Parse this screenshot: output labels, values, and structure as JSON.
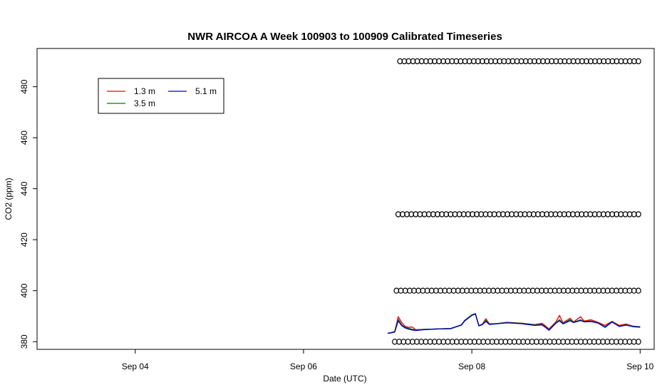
{
  "chart_data": {
    "type": "line",
    "title": "NWR AIRCOA A  Week 100903 to 100909  Calibrated Timeseries",
    "xlabel": "Date (UTC)",
    "ylabel": "CO2 (ppm)",
    "xlim": [
      "2010-09-02T20:00",
      "2010-09-10T04:00"
    ],
    "ylim": [
      377,
      495
    ],
    "x_ticks": [
      {
        "label": "Sep 04",
        "date": "2010-09-04T00:00"
      },
      {
        "label": "Sep 06",
        "date": "2010-09-06T00:00"
      },
      {
        "label": "Sep 08",
        "date": "2010-09-08T00:00"
      },
      {
        "label": "Sep 10",
        "date": "2010-09-10T00:00"
      }
    ],
    "y_ticks": [
      380,
      400,
      420,
      440,
      460,
      480
    ],
    "grid": false,
    "legend": {
      "placement": "top-left",
      "entries": [
        {
          "label": "1.3 m",
          "color": "#ff0000"
        },
        {
          "label": "5.1 m",
          "color": "#0000cc"
        },
        {
          "label": "3.5 m",
          "color": "#008000"
        }
      ]
    },
    "series": [
      {
        "name": "1.3 m",
        "color": "#ff0000",
        "points": [
          [
            "2010-09-07T00:00",
            383.3
          ],
          [
            "2010-09-07T01:00",
            383.6
          ],
          [
            "2010-09-07T02:00",
            384.0
          ],
          [
            "2010-09-07T03:00",
            389.8
          ],
          [
            "2010-09-07T04:00",
            387.5
          ],
          [
            "2010-09-07T05:00",
            386.0
          ],
          [
            "2010-09-07T06:00",
            385.6
          ],
          [
            "2010-09-07T07:00",
            385.8
          ],
          [
            "2010-09-07T08:00",
            384.7
          ],
          [
            "2010-09-07T10:00",
            384.8
          ],
          [
            "2010-09-07T14:00",
            385.0
          ],
          [
            "2010-09-07T18:00",
            385.2
          ],
          [
            "2010-09-07T21:00",
            386.6
          ],
          [
            "2010-09-07T22:00",
            388.4
          ],
          [
            "2010-09-08T00:00",
            390.5
          ],
          [
            "2010-09-08T01:00",
            391.0
          ],
          [
            "2010-09-08T02:00",
            386.3
          ],
          [
            "2010-09-08T03:00",
            386.9
          ],
          [
            "2010-09-08T04:00",
            389.0
          ],
          [
            "2010-09-08T05:00",
            387.0
          ],
          [
            "2010-09-08T07:00",
            387.1
          ],
          [
            "2010-09-08T10:00",
            387.6
          ],
          [
            "2010-09-08T14:00",
            387.3
          ],
          [
            "2010-09-08T18:00",
            386.7
          ],
          [
            "2010-09-08T20:00",
            387.2
          ],
          [
            "2010-09-08T21:00",
            386.2
          ],
          [
            "2010-09-08T22:00",
            385.0
          ],
          [
            "2010-09-09T00:00",
            387.8
          ],
          [
            "2010-09-09T01:00",
            390.3
          ],
          [
            "2010-09-09T02:00",
            387.4
          ],
          [
            "2010-09-09T04:00",
            389.2
          ],
          [
            "2010-09-09T05:00",
            387.7
          ],
          [
            "2010-09-09T07:00",
            389.8
          ],
          [
            "2010-09-09T08:00",
            388.1
          ],
          [
            "2010-09-09T10:00",
            388.6
          ],
          [
            "2010-09-09T12:00",
            387.6
          ],
          [
            "2010-09-09T14:00",
            386.4
          ],
          [
            "2010-09-09T15:00",
            387.2
          ],
          [
            "2010-09-09T16:00",
            388.0
          ],
          [
            "2010-09-09T18:00",
            386.4
          ],
          [
            "2010-09-09T20:00",
            386.9
          ],
          [
            "2010-09-09T22:00",
            386.1
          ],
          [
            "2010-09-10T00:00",
            385.9
          ]
        ]
      },
      {
        "name": "3.5 m",
        "color": "#008000",
        "points": [
          [
            "2010-09-07T00:00",
            383.3
          ],
          [
            "2010-09-07T01:00",
            383.6
          ],
          [
            "2010-09-07T02:00",
            384.0
          ],
          [
            "2010-09-07T03:00",
            388.8
          ],
          [
            "2010-09-07T04:00",
            386.6
          ],
          [
            "2010-09-07T05:00",
            385.7
          ],
          [
            "2010-09-07T06:00",
            385.2
          ],
          [
            "2010-09-07T07:00",
            384.9
          ],
          [
            "2010-09-07T08:00",
            384.5
          ],
          [
            "2010-09-07T10:00",
            384.8
          ],
          [
            "2010-09-07T14:00",
            385.0
          ],
          [
            "2010-09-07T18:00",
            385.2
          ],
          [
            "2010-09-07T21:00",
            386.6
          ],
          [
            "2010-09-07T22:00",
            388.4
          ],
          [
            "2010-09-08T00:00",
            390.5
          ],
          [
            "2010-09-08T01:00",
            391.0
          ],
          [
            "2010-09-08T02:00",
            386.3
          ],
          [
            "2010-09-08T03:00",
            386.8
          ],
          [
            "2010-09-08T04:00",
            388.4
          ],
          [
            "2010-09-08T05:00",
            386.9
          ],
          [
            "2010-09-08T07:00",
            387.1
          ],
          [
            "2010-09-08T10:00",
            387.5
          ],
          [
            "2010-09-08T14:00",
            387.2
          ],
          [
            "2010-09-08T18:00",
            386.5
          ],
          [
            "2010-09-08T20:00",
            386.8
          ],
          [
            "2010-09-08T21:00",
            385.8
          ],
          [
            "2010-09-08T22:00",
            384.6
          ],
          [
            "2010-09-09T00:00",
            387.5
          ],
          [
            "2010-09-09T01:00",
            388.6
          ],
          [
            "2010-09-09T02:00",
            387.2
          ],
          [
            "2010-09-09T04:00",
            388.6
          ],
          [
            "2010-09-09T05:00",
            387.6
          ],
          [
            "2010-09-09T07:00",
            388.6
          ],
          [
            "2010-09-09T08:00",
            387.9
          ],
          [
            "2010-09-09T10:00",
            388.1
          ],
          [
            "2010-09-09T12:00",
            387.4
          ],
          [
            "2010-09-09T14:00",
            385.8
          ],
          [
            "2010-09-09T15:00",
            386.8
          ],
          [
            "2010-09-09T16:00",
            387.8
          ],
          [
            "2010-09-09T18:00",
            386.1
          ],
          [
            "2010-09-09T20:00",
            386.6
          ],
          [
            "2010-09-09T22:00",
            386.0
          ],
          [
            "2010-09-10T00:00",
            385.8
          ]
        ]
      },
      {
        "name": "5.1 m",
        "color": "#0000cc",
        "points": [
          [
            "2010-09-07T00:00",
            383.3
          ],
          [
            "2010-09-07T01:00",
            383.5
          ],
          [
            "2010-09-07T02:00",
            383.8
          ],
          [
            "2010-09-07T03:00",
            388.2
          ],
          [
            "2010-09-07T04:00",
            386.3
          ],
          [
            "2010-09-07T05:00",
            385.4
          ],
          [
            "2010-09-07T06:00",
            384.9
          ],
          [
            "2010-09-07T07:00",
            384.6
          ],
          [
            "2010-09-07T08:00",
            384.4
          ],
          [
            "2010-09-07T10:00",
            384.7
          ],
          [
            "2010-09-07T14:00",
            385.0
          ],
          [
            "2010-09-07T18:00",
            385.1
          ],
          [
            "2010-09-07T21:00",
            386.5
          ],
          [
            "2010-09-07T22:00",
            388.2
          ],
          [
            "2010-09-08T00:00",
            390.3
          ],
          [
            "2010-09-08T01:00",
            390.9
          ],
          [
            "2010-09-08T02:00",
            386.2
          ],
          [
            "2010-09-08T03:00",
            386.7
          ],
          [
            "2010-09-08T04:00",
            388.0
          ],
          [
            "2010-09-08T05:00",
            386.8
          ],
          [
            "2010-09-08T07:00",
            387.0
          ],
          [
            "2010-09-08T10:00",
            387.4
          ],
          [
            "2010-09-08T14:00",
            387.1
          ],
          [
            "2010-09-08T18:00",
            386.4
          ],
          [
            "2010-09-08T20:00",
            386.6
          ],
          [
            "2010-09-08T21:00",
            385.6
          ],
          [
            "2010-09-08T22:00",
            384.5
          ],
          [
            "2010-09-09T00:00",
            387.3
          ],
          [
            "2010-09-09T01:00",
            388.2
          ],
          [
            "2010-09-09T02:00",
            387.0
          ],
          [
            "2010-09-09T04:00",
            388.2
          ],
          [
            "2010-09-09T05:00",
            387.5
          ],
          [
            "2010-09-09T07:00",
            388.3
          ],
          [
            "2010-09-09T08:00",
            387.8
          ],
          [
            "2010-09-09T10:00",
            387.9
          ],
          [
            "2010-09-09T12:00",
            387.3
          ],
          [
            "2010-09-09T14:00",
            385.6
          ],
          [
            "2010-09-09T15:00",
            386.7
          ],
          [
            "2010-09-09T16:00",
            387.7
          ],
          [
            "2010-09-09T18:00",
            386.0
          ],
          [
            "2010-09-09T20:00",
            386.5
          ],
          [
            "2010-09-09T22:00",
            385.9
          ],
          [
            "2010-09-10T00:00",
            385.7
          ]
        ]
      }
    ],
    "marker_series": [
      {
        "marker": "circle",
        "y": 490,
        "x_start": "2010-09-07T03:30",
        "x_end": "2010-09-09T23:30",
        "count": 56
      },
      {
        "marker": "circle",
        "y": 430,
        "x_start": "2010-09-07T03:00",
        "x_end": "2010-09-09T23:30",
        "count": 56
      },
      {
        "marker": "circle",
        "y": 400,
        "x_start": "2010-09-07T02:30",
        "x_end": "2010-09-09T23:30",
        "count": 56
      },
      {
        "marker": "circle",
        "y": 380,
        "x_start": "2010-09-07T02:00",
        "x_end": "2010-09-09T23:30",
        "count": 56
      }
    ]
  }
}
